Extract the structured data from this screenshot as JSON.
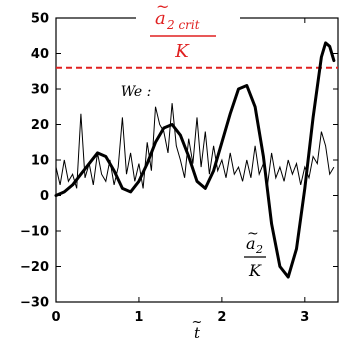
{
  "chart_data": {
    "type": "line",
    "xlabel": "t",
    "xlim": [
      0,
      3.4
    ],
    "ylim": [
      -30,
      50
    ],
    "x_ticks": [
      {
        "value": 0,
        "label": "0"
      },
      {
        "value": 1,
        "label": "1"
      },
      {
        "value": 2,
        "label": "2"
      },
      {
        "value": 3,
        "label": "3"
      }
    ],
    "y_ticks": [
      {
        "value": -30,
        "label": "−30"
      },
      {
        "value": -20,
        "label": "−20"
      },
      {
        "value": -10,
        "label": "−10"
      },
      {
        "value": 0,
        "label": "0"
      },
      {
        "value": 10,
        "label": "10"
      },
      {
        "value": 20,
        "label": "20"
      },
      {
        "value": 30,
        "label": "30"
      },
      {
        "value": 40,
        "label": "40"
      },
      {
        "value": 50,
        "label": "50"
      }
    ],
    "critical_threshold": {
      "value": 36,
      "color": "#e02020",
      "style": "dashed",
      "label_numerator": "a",
      "label_subscript": "2 crit",
      "label_denominator": "K"
    },
    "series": [
      {
        "name": "We",
        "label": "We :",
        "style": "thin-noisy",
        "color": "#000000",
        "x": [
          0.0,
          0.05,
          0.1,
          0.15,
          0.2,
          0.25,
          0.3,
          0.35,
          0.4,
          0.45,
          0.5,
          0.55,
          0.6,
          0.65,
          0.7,
          0.75,
          0.8,
          0.85,
          0.9,
          0.95,
          1.0,
          1.05,
          1.1,
          1.15,
          1.2,
          1.25,
          1.3,
          1.35,
          1.4,
          1.45,
          1.5,
          1.55,
          1.6,
          1.65,
          1.7,
          1.75,
          1.8,
          1.85,
          1.9,
          1.95,
          2.0,
          2.05,
          2.1,
          2.15,
          2.2,
          2.25,
          2.3,
          2.35,
          2.4,
          2.45,
          2.5,
          2.55,
          2.6,
          2.65,
          2.7,
          2.75,
          2.8,
          2.85,
          2.9,
          2.95,
          3.0,
          3.05,
          3.1,
          3.15,
          3.2,
          3.25,
          3.3,
          3.35
        ],
        "values": [
          8,
          3,
          10,
          4,
          6,
          2,
          23,
          5,
          9,
          3,
          12,
          6,
          4,
          10,
          3,
          8,
          22,
          6,
          12,
          4,
          9,
          2,
          15,
          7,
          25,
          20,
          18,
          12,
          26,
          14,
          10,
          5,
          16,
          9,
          22,
          8,
          18,
          6,
          14,
          7,
          10,
          5,
          12,
          6,
          8,
          4,
          10,
          5,
          14,
          6,
          9,
          3,
          12,
          5,
          8,
          4,
          10,
          6,
          9,
          3,
          8,
          5,
          11,
          9,
          18,
          14,
          6,
          8
        ]
      },
      {
        "name": "a2/K",
        "label_numerator": "a",
        "label_subscript": "2",
        "label_denominator": "K",
        "style": "thick",
        "color": "#000000",
        "x": [
          0.0,
          0.1,
          0.2,
          0.3,
          0.4,
          0.5,
          0.6,
          0.7,
          0.8,
          0.9,
          1.0,
          1.1,
          1.2,
          1.3,
          1.4,
          1.5,
          1.6,
          1.7,
          1.8,
          1.9,
          2.0,
          2.1,
          2.2,
          2.3,
          2.4,
          2.5,
          2.6,
          2.7,
          2.8,
          2.9,
          3.0,
          3.1,
          3.2,
          3.25,
          3.3,
          3.35
        ],
        "values": [
          0,
          1,
          3,
          6,
          9,
          12,
          11,
          7,
          2,
          1,
          4,
          9,
          15,
          19,
          20,
          17,
          11,
          4,
          2,
          7,
          15,
          23,
          30,
          31,
          25,
          11,
          -8,
          -20,
          -23,
          -15,
          2,
          22,
          39,
          43,
          42,
          38
        ]
      }
    ]
  }
}
